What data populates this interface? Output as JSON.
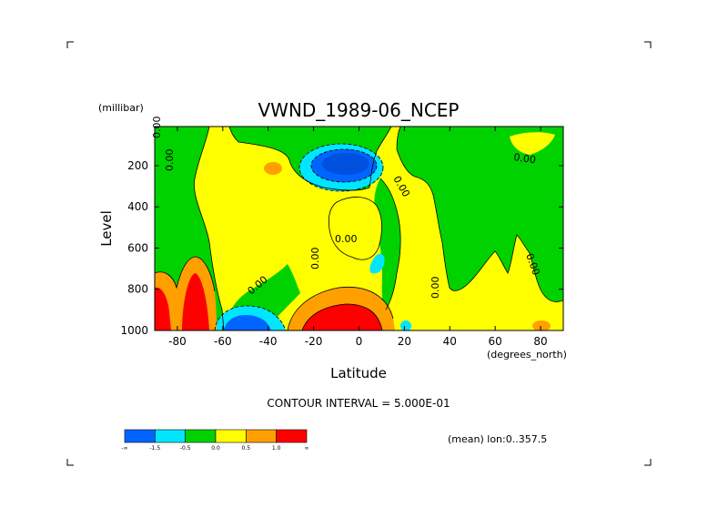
{
  "chart_data": {
    "type": "contour",
    "title": "VWND_1989-06_NCEP",
    "xlabel": "Latitude",
    "ylabel": "Level",
    "x_units": "(degrees_north)",
    "y_units": "(millibar)",
    "x_ticks": [
      "-80",
      "-60",
      "-40",
      "-20",
      "0",
      "20",
      "40",
      "60",
      "80"
    ],
    "x_tick_values": [
      -80,
      -60,
      -40,
      -20,
      0,
      20,
      40,
      60,
      80
    ],
    "y_ticks": [
      "200",
      "400",
      "600",
      "800",
      "1000"
    ],
    "y_tick_values": [
      200,
      400,
      600,
      800,
      1000
    ],
    "xlim": [
      -90,
      90
    ],
    "ylim": [
      1000,
      10
    ],
    "contour_interval_text": "CONTOUR INTERVAL = 5.000E-01",
    "mean_text": "(mean) lon:0..357.5",
    "contour_labels": [
      "0.00",
      "0.00",
      "0.00",
      "0.00",
      "0.00",
      "0.00",
      "0.00",
      "0.00",
      "0.00"
    ],
    "colorbar": {
      "colors": [
        "#0064ff",
        "#00e6ff",
        "#00d200",
        "#ffff00",
        "#ffa000",
        "#ff0000"
      ],
      "labels": [
        "-∞",
        "-1.5",
        "-0.5",
        "0.0",
        "0.5",
        "1.0",
        "∞"
      ]
    },
    "features": [
      {
        "kind": "positive",
        "lat_range": [
          -90,
          -68
        ],
        "level_range": [
          700,
          1000
        ],
        "max_band": "> 1.0"
      },
      {
        "kind": "negative",
        "lat_range": [
          -62,
          -40
        ],
        "level_range": [
          930,
          1000
        ],
        "min_band": "< -1.5"
      },
      {
        "kind": "positive",
        "lat_range": [
          -25,
          15
        ],
        "level_range": [
          800,
          1000
        ],
        "max_band": "> 1.0"
      },
      {
        "kind": "negative",
        "lat_range": [
          -25,
          12
        ],
        "level_range": [
          100,
          300
        ],
        "min_band": "< -1.5"
      }
    ]
  }
}
